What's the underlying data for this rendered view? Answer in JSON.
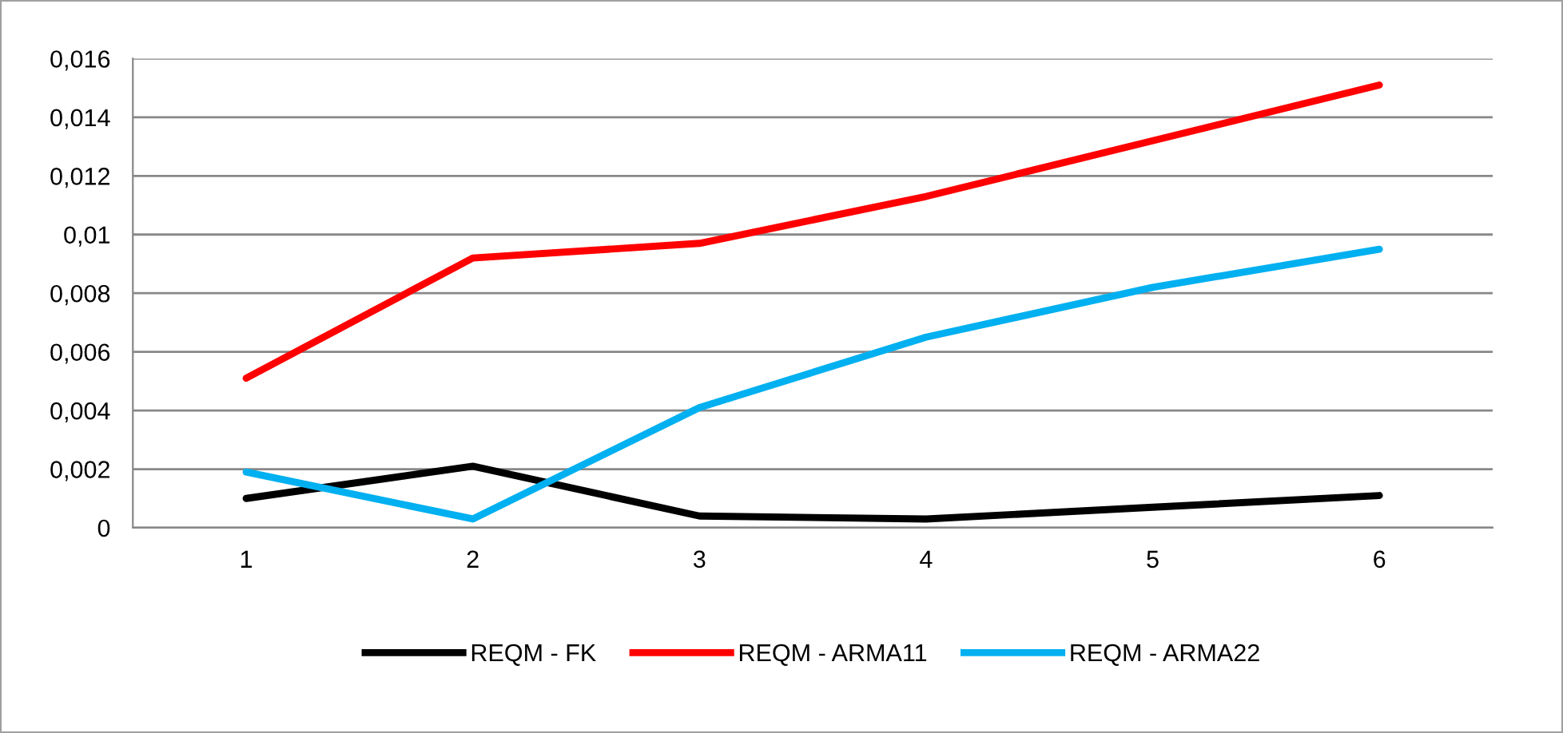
{
  "chart_data": {
    "type": "line",
    "categories": [
      "1",
      "2",
      "3",
      "4",
      "5",
      "6"
    ],
    "series": [
      {
        "name": "REQM - FK",
        "color": "#000000",
        "values": [
          0.001,
          0.0021,
          0.0004,
          0.0003,
          0.0007,
          0.0011
        ]
      },
      {
        "name": "REQM - ARMA11",
        "color": "#ff0000",
        "values": [
          0.0051,
          0.0092,
          0.0097,
          0.0113,
          0.0132,
          0.0151
        ]
      },
      {
        "name": "REQM - ARMA22",
        "color": "#00b0f0",
        "values": [
          0.0019,
          0.0003,
          0.0041,
          0.0065,
          0.0082,
          0.0095
        ]
      }
    ],
    "ylim": [
      0,
      0.016
    ],
    "yticks": [
      0,
      {
        "value": 0.002,
        "label": "0,002"
      },
      {
        "value": 0.004,
        "label": "0,004"
      },
      {
        "value": 0.006,
        "label": "0,006"
      },
      {
        "value": 0.008,
        "label": "0,008"
      },
      {
        "value": 0.01,
        "label": "0,01"
      },
      {
        "value": 0.012,
        "label": "0,012"
      },
      {
        "value": 0.014,
        "label": "0,014"
      },
      {
        "value": 0.016,
        "label": "0,016"
      }
    ],
    "grid": "y",
    "legend": "bottom",
    "marker": "none",
    "line_style": "solid"
  }
}
